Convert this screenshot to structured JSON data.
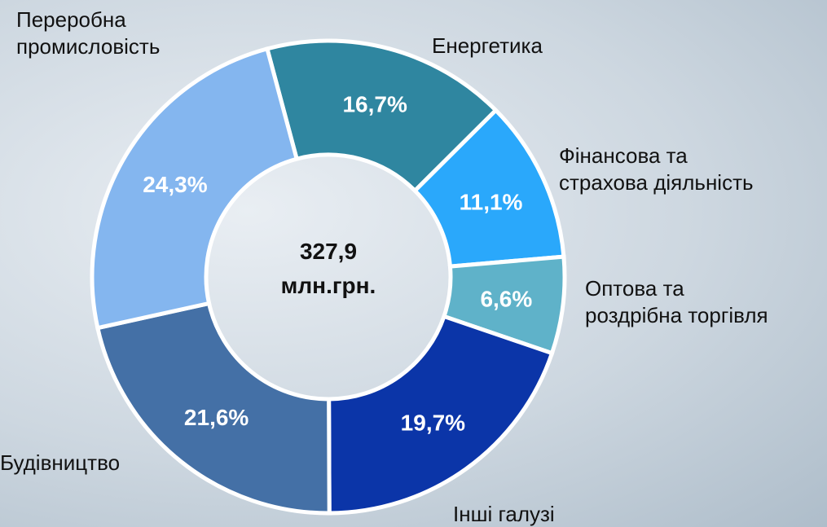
{
  "chart_data": {
    "type": "donut",
    "categories": [
      "Енергетика",
      "Фінансова та\nстрахова діяльність",
      "Оптова та\nроздрібна торгівля",
      "Інші галузі",
      "Будівництво",
      "Переробна\nпромисловість"
    ],
    "values": [
      16.7,
      11.1,
      6.6,
      19.7,
      21.6,
      24.3
    ],
    "value_labels": [
      "16,7%",
      "11,1%",
      "6,6%",
      "19,7%",
      "21,6%",
      "24,3%"
    ],
    "colors": [
      "#2f86a0",
      "#2aa8fb",
      "#5fb2c9",
      "#0b35a8",
      "#4470a6",
      "#84b6ef"
    ],
    "center_text": [
      "327,9",
      "млн.грн."
    ]
  }
}
